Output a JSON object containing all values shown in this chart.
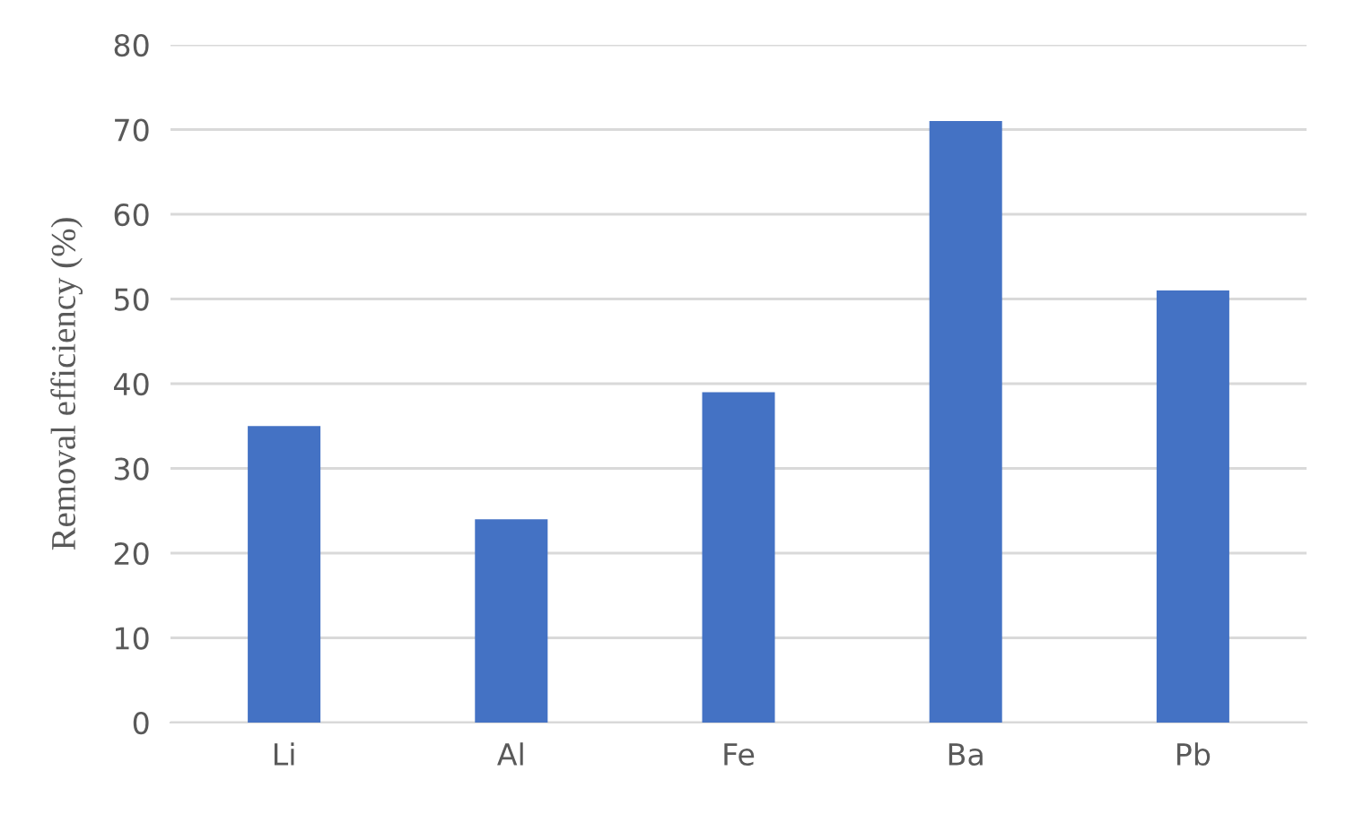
{
  "chart_data": {
    "type": "bar",
    "ylabel": "Removal efficiency (%)",
    "categories": [
      "Li",
      "Al",
      "Fe",
      "Ba",
      "Pb"
    ],
    "values": [
      35,
      24,
      39,
      71,
      51
    ],
    "color": "#4472c4",
    "ylim": [
      0,
      80
    ],
    "yticks": [
      0,
      10,
      20,
      30,
      40,
      50,
      60,
      70,
      80
    ],
    "grid": "y"
  }
}
